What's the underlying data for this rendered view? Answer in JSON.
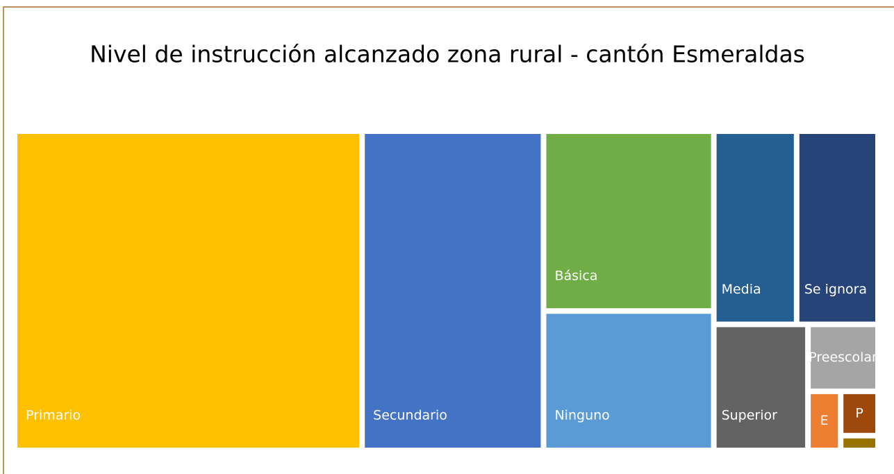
{
  "chart_data": {
    "type": "treemap",
    "title": "Nivel de instrucción alcanzado zona rural - cantón Esmeraldas",
    "categories": [
      "Primario",
      "Secundario",
      "Básica",
      "Ninguno",
      "Media",
      "Se ignora",
      "Superior",
      "Preescolar",
      "E",
      "P",
      null
    ],
    "values": [
      40.2,
      21.0,
      11.1,
      8.6,
      5.8,
      5.7,
      4.3,
      1.7,
      0.7,
      0.6,
      0.2
    ],
    "colors": [
      "#FFC000",
      "#4472C4",
      "#70AD47",
      "#5B9BD5",
      "#255E91",
      "#264478",
      "#636363",
      "#A5A5A5",
      "#ED7D31",
      "#9E480E",
      "#997300"
    ]
  }
}
